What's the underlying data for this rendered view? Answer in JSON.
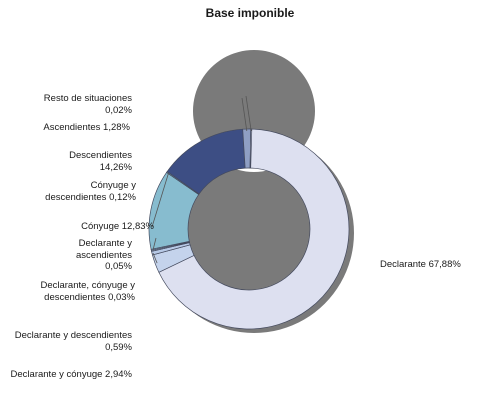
{
  "chart_data": {
    "type": "pie",
    "title": "Base imponible",
    "categories": [
      "Declarante",
      "Declarante y cónyuge",
      "Declarante y descendientes",
      "Declarante, cónyuge y descendientes",
      "Declarante y ascendientes",
      "Cónyuge",
      "Cónyuge y descendientes",
      "Descendientes",
      "Ascendientes",
      "Resto de situaciones"
    ],
    "values": [
      67.88,
      2.94,
      0.59,
      0.03,
      0.05,
      12.83,
      0.12,
      14.26,
      1.28,
      0.02
    ],
    "labels": [
      "Declarante 67,88%",
      "Declarante y cónyuge 2,94%",
      "Declarante y descendientes 0,59%",
      "Declarante, cónyuge y descendientes 0,03%",
      "Declarante y ascendientes 0,05%",
      "Cónyuge 12,83%",
      "Cónyuge y descendientes 0,12%",
      "Descendientes 14,26%",
      "Ascendientes 1,28%",
      "Resto de situaciones 0,02%"
    ],
    "colors": [
      "#dde0f0",
      "#c4d3ec",
      "#b7c9e6",
      "#aec4e0",
      "#9ebfd8",
      "#87bccf",
      "#7aa8c4",
      "#3d4e84",
      "#8f9fc4",
      "#dde0f0"
    ],
    "donut": true,
    "legend": "none"
  }
}
